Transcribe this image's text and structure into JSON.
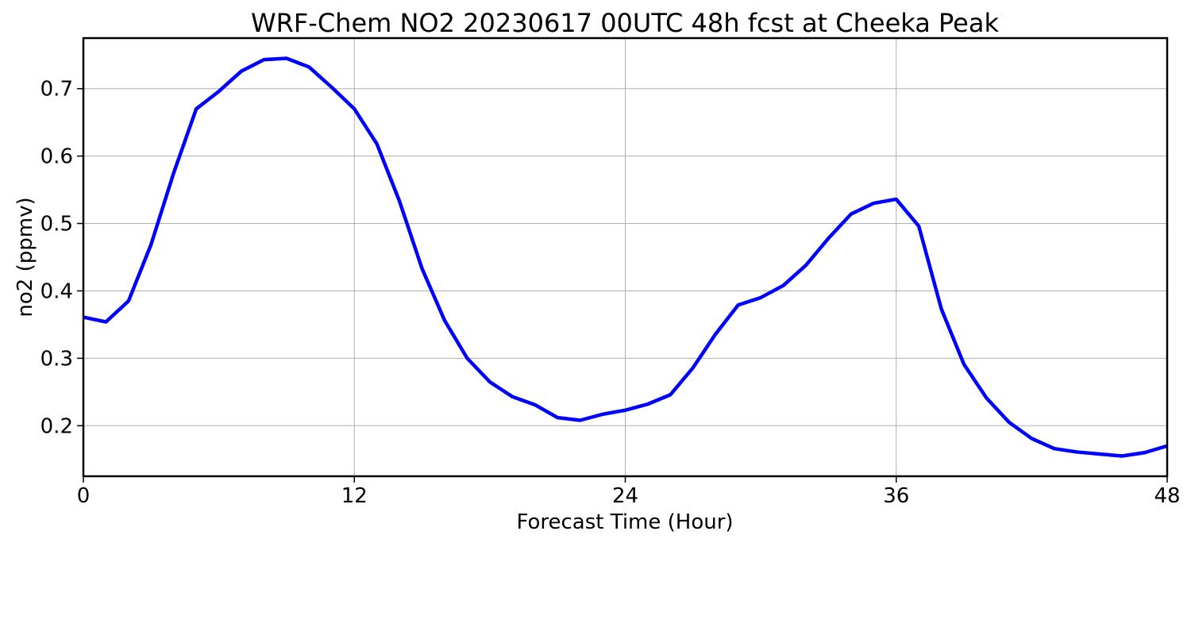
{
  "chart_data": {
    "type": "line",
    "title": "WRF-Chem NO2  20230617 00UTC 48h fcst at Cheeka Peak",
    "xlabel": "Forecast Time (Hour)",
    "ylabel": "no2  (ppmv)",
    "xlim": [
      0,
      48
    ],
    "ylim": [
      0.125,
      0.775
    ],
    "xticks": [
      0,
      12,
      24,
      36,
      48
    ],
    "yticks": [
      0.2,
      0.3,
      0.4,
      0.5,
      0.6,
      0.7
    ],
    "grid": true,
    "series_color": "#0000ff",
    "x": [
      0,
      1,
      2,
      3,
      4,
      5,
      6,
      7,
      8,
      9,
      10,
      11,
      12,
      13,
      14,
      15,
      16,
      17,
      18,
      19,
      20,
      21,
      22,
      23,
      24,
      25,
      26,
      27,
      28,
      29,
      30,
      31,
      32,
      33,
      34,
      35,
      36,
      37,
      38,
      39,
      40,
      41,
      42,
      43,
      44,
      45,
      46,
      47,
      48
    ],
    "series": [
      {
        "values": [
          0.361,
          0.354,
          0.385,
          0.469,
          0.575,
          0.67,
          0.696,
          0.726,
          0.743,
          0.745,
          0.732,
          0.702,
          0.67,
          0.618,
          0.533,
          0.433,
          0.356,
          0.3,
          0.265,
          0.243,
          0.231,
          0.212,
          0.208,
          0.217,
          0.223,
          0.232,
          0.246,
          0.286,
          0.336,
          0.379,
          0.39,
          0.408,
          0.438,
          0.478,
          0.514,
          0.53,
          0.536,
          0.496,
          0.373,
          0.291,
          0.241,
          0.205,
          0.181,
          0.166,
          0.161,
          0.158,
          0.155,
          0.16,
          0.17
        ]
      }
    ]
  }
}
